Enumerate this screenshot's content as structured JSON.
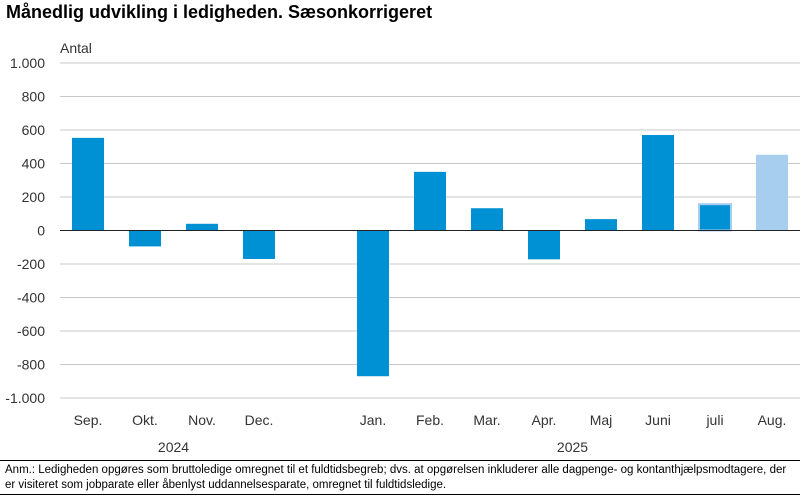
{
  "title": "Månedlig udvikling i ledigheden. Sæsonkorrigeret",
  "note": "Anm.: Ledigheden opgøres som bruttoledige omregnet til et fuldtidsbegreb; dvs. at opgørelsen inkluderer alle dagpenge- og kontanthjælpsmodtagere, der er visiteret som jobparate eller åbenlyst uddannelsesparate, omregnet til fuldtidsledige.",
  "chart_data": {
    "type": "bar",
    "title": "Månedlig udvikling i ledigheden. Sæsonkorrigeret",
    "ylabel": "Antal",
    "ylim": [
      -1000,
      1000
    ],
    "yticks": [
      1000,
      800,
      600,
      400,
      200,
      0,
      -200,
      -400,
      -600,
      -800,
      -1000
    ],
    "ytick_labels": [
      "1.000",
      "800",
      "600",
      "400",
      "200",
      "0",
      "-200",
      "-400",
      "-600",
      "-800",
      "-1.000"
    ],
    "grid": true,
    "colors": {
      "actual": "#0090d4",
      "estimate": "#a7cdef",
      "highlight_outline": "#a7cdef"
    },
    "categories": [
      "Sep.",
      "Okt.",
      "Nov.",
      "Dec.",
      "Jan.",
      "Feb.",
      "Mar.",
      "Apr.",
      "Maj",
      "Juni",
      "juli",
      "Aug."
    ],
    "values": [
      553,
      -95,
      40,
      -170,
      -870,
      350,
      133,
      -172,
      68,
      570,
      157,
      452
    ],
    "styles": [
      "actual",
      "actual",
      "actual",
      "actual",
      "actual",
      "actual",
      "actual",
      "actual",
      "actual",
      "actual",
      "outlined",
      "estimate"
    ],
    "groups": [
      {
        "label": "2024",
        "categories": [
          "Sep.",
          "Okt.",
          "Nov.",
          "Dec."
        ]
      },
      {
        "label": "2025",
        "categories": [
          "Jan.",
          "Feb.",
          "Mar.",
          "Apr.",
          "Maj",
          "Juni",
          "juli",
          "Aug."
        ]
      }
    ]
  }
}
